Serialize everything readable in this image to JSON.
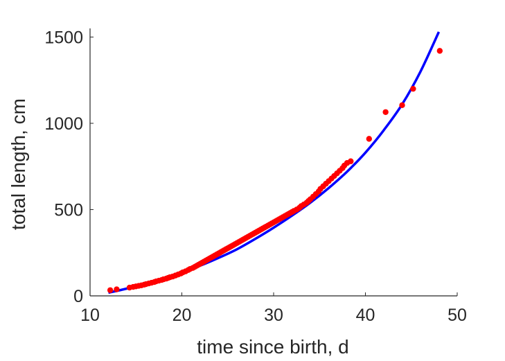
{
  "chart_data": {
    "type": "scatter",
    "xlabel": "time since birth, d",
    "ylabel": "total length, cm",
    "xlim": [
      10,
      50
    ],
    "ylim": [
      0,
      1550
    ],
    "xticks": [
      "10",
      "20",
      "30",
      "40",
      "50"
    ],
    "yticks": [
      "0",
      "500",
      "1000",
      "1500"
    ],
    "xtick_values": [
      10,
      20,
      30,
      40,
      50
    ],
    "ytick_values": [
      0,
      500,
      1000,
      1500
    ],
    "grid": false,
    "legend": "none",
    "colors": {
      "fit_line": "#0000ff",
      "points": "#ff0000",
      "axes": "#262626"
    },
    "fit_curve": {
      "x": [
        12,
        14,
        16,
        18,
        20,
        22,
        24,
        26,
        28,
        30,
        32,
        34,
        36,
        38,
        40,
        42,
        44,
        46,
        48
      ],
      "y": [
        18,
        42,
        69,
        99,
        135,
        175,
        220,
        270,
        330,
        395,
        465,
        540,
        625,
        720,
        830,
        960,
        1110,
        1300,
        1530
      ]
    },
    "series": [
      {
        "type": "scatter",
        "x": [
          12.2,
          12.9,
          14.3,
          14.7,
          15.0,
          15.3,
          15.6,
          15.9,
          16.1,
          16.4,
          16.7,
          17.0,
          17.2,
          17.5,
          17.8,
          18.0,
          18.3,
          18.5,
          18.7,
          19.0,
          19.3,
          19.6,
          19.9,
          20.1,
          20.4,
          20.7,
          20.9,
          21.2,
          21.4,
          21.6,
          21.8,
          22.0,
          22.2,
          22.4,
          22.6,
          22.8,
          23.0,
          23.2,
          23.4,
          23.6,
          23.8,
          24.0,
          24.2,
          24.4,
          24.6,
          24.8,
          25.0,
          25.2,
          25.4,
          25.6,
          25.8,
          26.0,
          26.2,
          26.4,
          26.6,
          26.8,
          27.0,
          27.2,
          27.4,
          27.6,
          27.8,
          28.0,
          28.2,
          28.4,
          28.6,
          28.8,
          29.0,
          29.2,
          29.4,
          29.6,
          29.8,
          30.0,
          30.2,
          30.4,
          30.6,
          30.8,
          31.0,
          31.2,
          31.4,
          31.6,
          31.8,
          32.0,
          32.2,
          32.5,
          32.8,
          33.0,
          33.3,
          33.6,
          33.8,
          34.0,
          34.3,
          34.6,
          34.9,
          35.1,
          35.4,
          35.7,
          36.0,
          36.3,
          36.6,
          36.9,
          37.2,
          37.5,
          37.7,
          38.0,
          38.4,
          40.4,
          42.2,
          44.0,
          45.2,
          48.1
        ],
        "y": [
          33,
          38,
          48,
          52,
          55,
          58,
          61,
          65,
          68,
          72,
          76,
          80,
          84,
          88,
          92,
          96,
          100,
          104,
          108,
          112,
          118,
          124,
          130,
          136,
          142,
          150,
          156,
          162,
          168,
          174,
          180,
          186,
          192,
          198,
          204,
          210,
          216,
          222,
          228,
          234,
          240,
          246,
          252,
          258,
          264,
          270,
          276,
          282,
          288,
          294,
          300,
          306,
          312,
          318,
          324,
          330,
          336,
          342,
          348,
          354,
          360,
          366,
          372,
          378,
          384,
          390,
          396,
          402,
          408,
          414,
          420,
          426,
          432,
          438,
          444,
          450,
          456,
          462,
          468,
          474,
          480,
          486,
          492,
          500,
          510,
          520,
          530,
          540,
          550,
          560,
          575,
          590,
          605,
          620,
          635,
          650,
          665,
          680,
          695,
          710,
          725,
          740,
          755,
          770,
          780,
          910,
          1065,
          1105,
          1200,
          1420
        ]
      }
    ]
  }
}
